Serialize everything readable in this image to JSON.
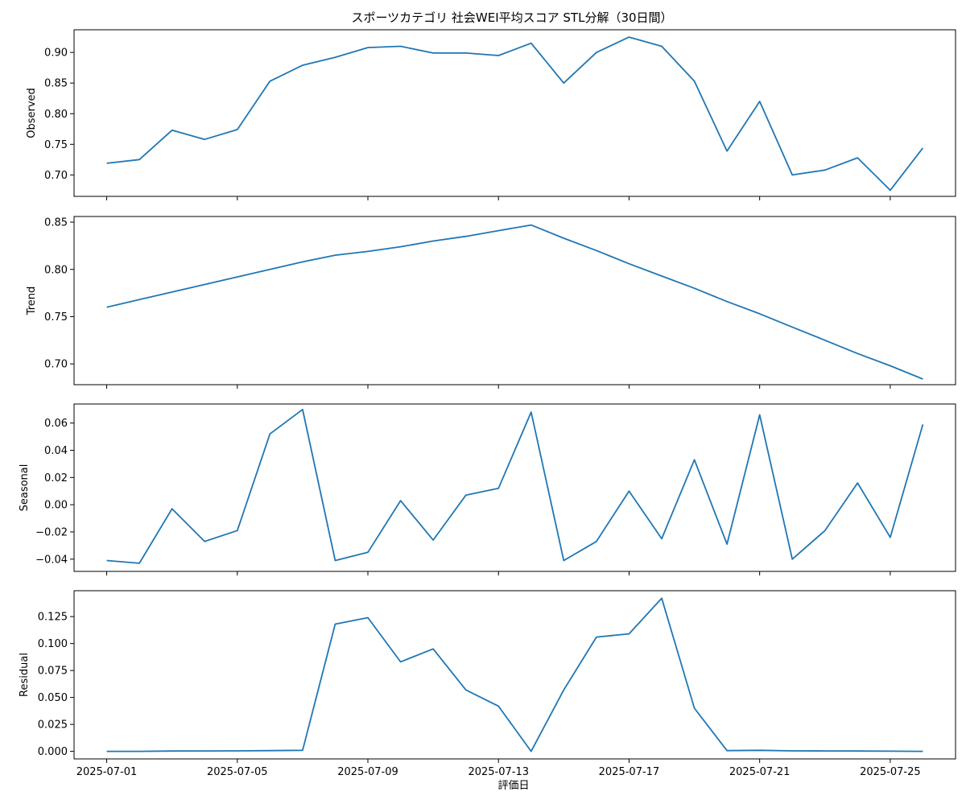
{
  "figure": {
    "title": "スポーツカテゴリ 社会WEI平均スコア STL分解（30日間）",
    "xlabel": "評価日",
    "line_color": "#1f77b4"
  },
  "chart_data": {
    "type": "line",
    "x": [
      "2025-07-01",
      "2025-07-02",
      "2025-07-03",
      "2025-07-04",
      "2025-07-05",
      "2025-07-06",
      "2025-07-07",
      "2025-07-08",
      "2025-07-09",
      "2025-07-10",
      "2025-07-11",
      "2025-07-12",
      "2025-07-13",
      "2025-07-14",
      "2025-07-15",
      "2025-07-16",
      "2025-07-17",
      "2025-07-18",
      "2025-07-19",
      "2025-07-20",
      "2025-07-21",
      "2025-07-22",
      "2025-07-23",
      "2025-07-24",
      "2025-07-25",
      "2025-07-26"
    ],
    "xticks": [
      "2025-07-01",
      "2025-07-05",
      "2025-07-09",
      "2025-07-13",
      "2025-07-17",
      "2025-07-21",
      "2025-07-25"
    ],
    "xlim": [
      "2025-06-30",
      "2025-07-27"
    ],
    "panels": [
      {
        "ylabel": "Observed",
        "ylim": [
          0.665,
          0.937
        ],
        "yticks": [
          0.7,
          0.75,
          0.8,
          0.85,
          0.9
        ],
        "ytick_labels": [
          "0.70",
          "0.75",
          "0.80",
          "0.85",
          "0.90"
        ],
        "values": [
          0.719,
          0.725,
          0.773,
          0.758,
          0.774,
          0.853,
          0.879,
          0.892,
          0.908,
          0.91,
          0.899,
          0.899,
          0.895,
          0.915,
          0.85,
          0.9,
          0.925,
          0.91,
          0.853,
          0.739,
          0.82,
          0.7,
          0.708,
          0.728,
          0.675,
          0.744
        ]
      },
      {
        "ylabel": "Trend",
        "ylim": [
          0.678,
          0.856
        ],
        "yticks": [
          0.7,
          0.75,
          0.8,
          0.85
        ],
        "ytick_labels": [
          "0.70",
          "0.75",
          "0.80",
          "0.85"
        ],
        "values": [
          0.76,
          0.768,
          0.776,
          0.784,
          0.792,
          0.8,
          0.808,
          0.815,
          0.819,
          0.824,
          0.83,
          0.835,
          0.841,
          0.847,
          0.833,
          0.82,
          0.806,
          0.793,
          0.78,
          0.766,
          0.753,
          0.739,
          0.725,
          0.711,
          0.698,
          0.684
        ]
      },
      {
        "ylabel": "Seasonal",
        "ylim": [
          -0.049,
          0.074
        ],
        "yticks": [
          -0.04,
          -0.02,
          0.0,
          0.02,
          0.04,
          0.06
        ],
        "ytick_labels": [
          "−0.04",
          "−0.02",
          "0.00",
          "0.02",
          "0.04",
          "0.06"
        ],
        "values": [
          -0.041,
          -0.043,
          -0.003,
          -0.027,
          -0.019,
          0.052,
          0.07,
          -0.041,
          -0.035,
          0.003,
          -0.026,
          0.007,
          0.012,
          0.068,
          -0.041,
          -0.027,
          0.01,
          -0.025,
          0.033,
          -0.029,
          0.066,
          -0.04,
          -0.019,
          0.016,
          -0.024,
          0.059
        ]
      },
      {
        "ylabel": "Residual",
        "ylim": [
          -0.007,
          0.149
        ],
        "yticks": [
          0.0,
          0.025,
          0.05,
          0.075,
          0.1,
          0.125
        ],
        "ytick_labels": [
          "0.000",
          "0.025",
          "0.050",
          "0.075",
          "0.100",
          "0.125"
        ],
        "values": [
          0.0,
          0.0,
          0.0003,
          0.0004,
          0.0005,
          0.0007,
          0.001,
          0.118,
          0.124,
          0.083,
          0.095,
          0.057,
          0.042,
          0.0,
          0.057,
          0.106,
          0.109,
          0.142,
          0.04,
          0.0007,
          0.001,
          0.0005,
          0.0004,
          0.0003,
          0.0002,
          0.0
        ]
      }
    ]
  }
}
